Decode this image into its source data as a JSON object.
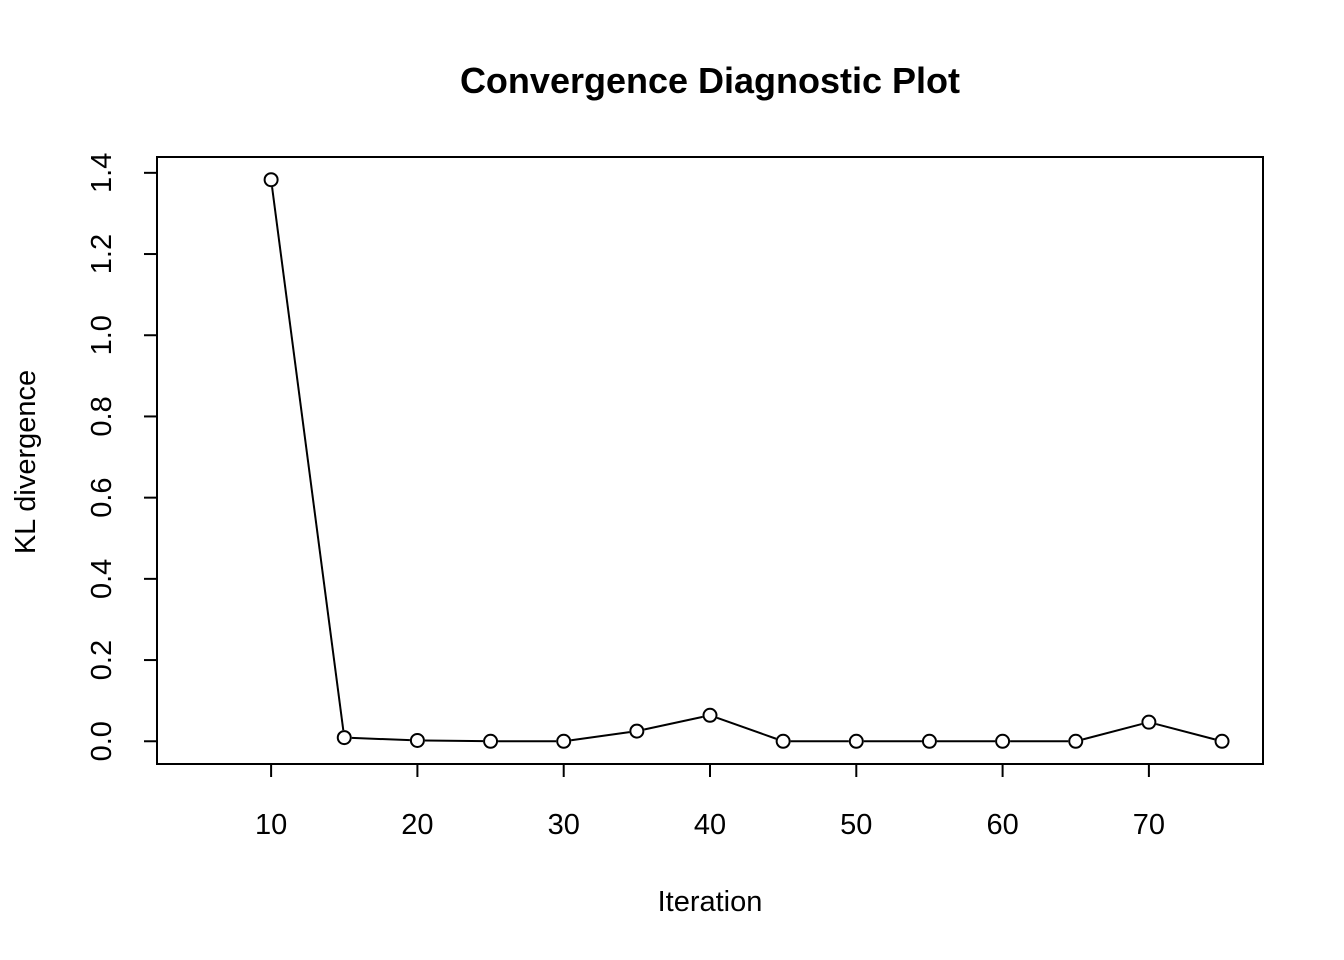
{
  "chart_data": {
    "type": "line",
    "title": "Convergence Diagnostic Plot",
    "xlabel": "Iteration",
    "ylabel": "KL divergence",
    "x": [
      10,
      15,
      20,
      25,
      30,
      35,
      40,
      45,
      50,
      55,
      60,
      65,
      70,
      75
    ],
    "series": [
      {
        "values": [
          1.383,
          0.009,
          0.002,
          0.0,
          0.0,
          0.025,
          0.064,
          0.0,
          0.0,
          0.0,
          0.0,
          0.0,
          0.047,
          0.0
        ]
      }
    ],
    "xlim": [
      2.2,
      77.8
    ],
    "ylim": [
      -0.056,
      1.439
    ],
    "xticks": [
      10,
      20,
      30,
      40,
      50,
      60,
      70
    ],
    "xtick_labels": [
      "10",
      "20",
      "30",
      "40",
      "50",
      "60",
      "70"
    ],
    "yticks": [
      0.0,
      0.2,
      0.4,
      0.6,
      0.8,
      1.0,
      1.2,
      1.4
    ],
    "ytick_labels": [
      "0.0",
      "0.2",
      "0.4",
      "0.6",
      "0.8",
      "1.0",
      "1.2",
      "1.4"
    ],
    "marker": "open-circle",
    "line_color": "#000000",
    "grid": false,
    "legend": "none"
  }
}
